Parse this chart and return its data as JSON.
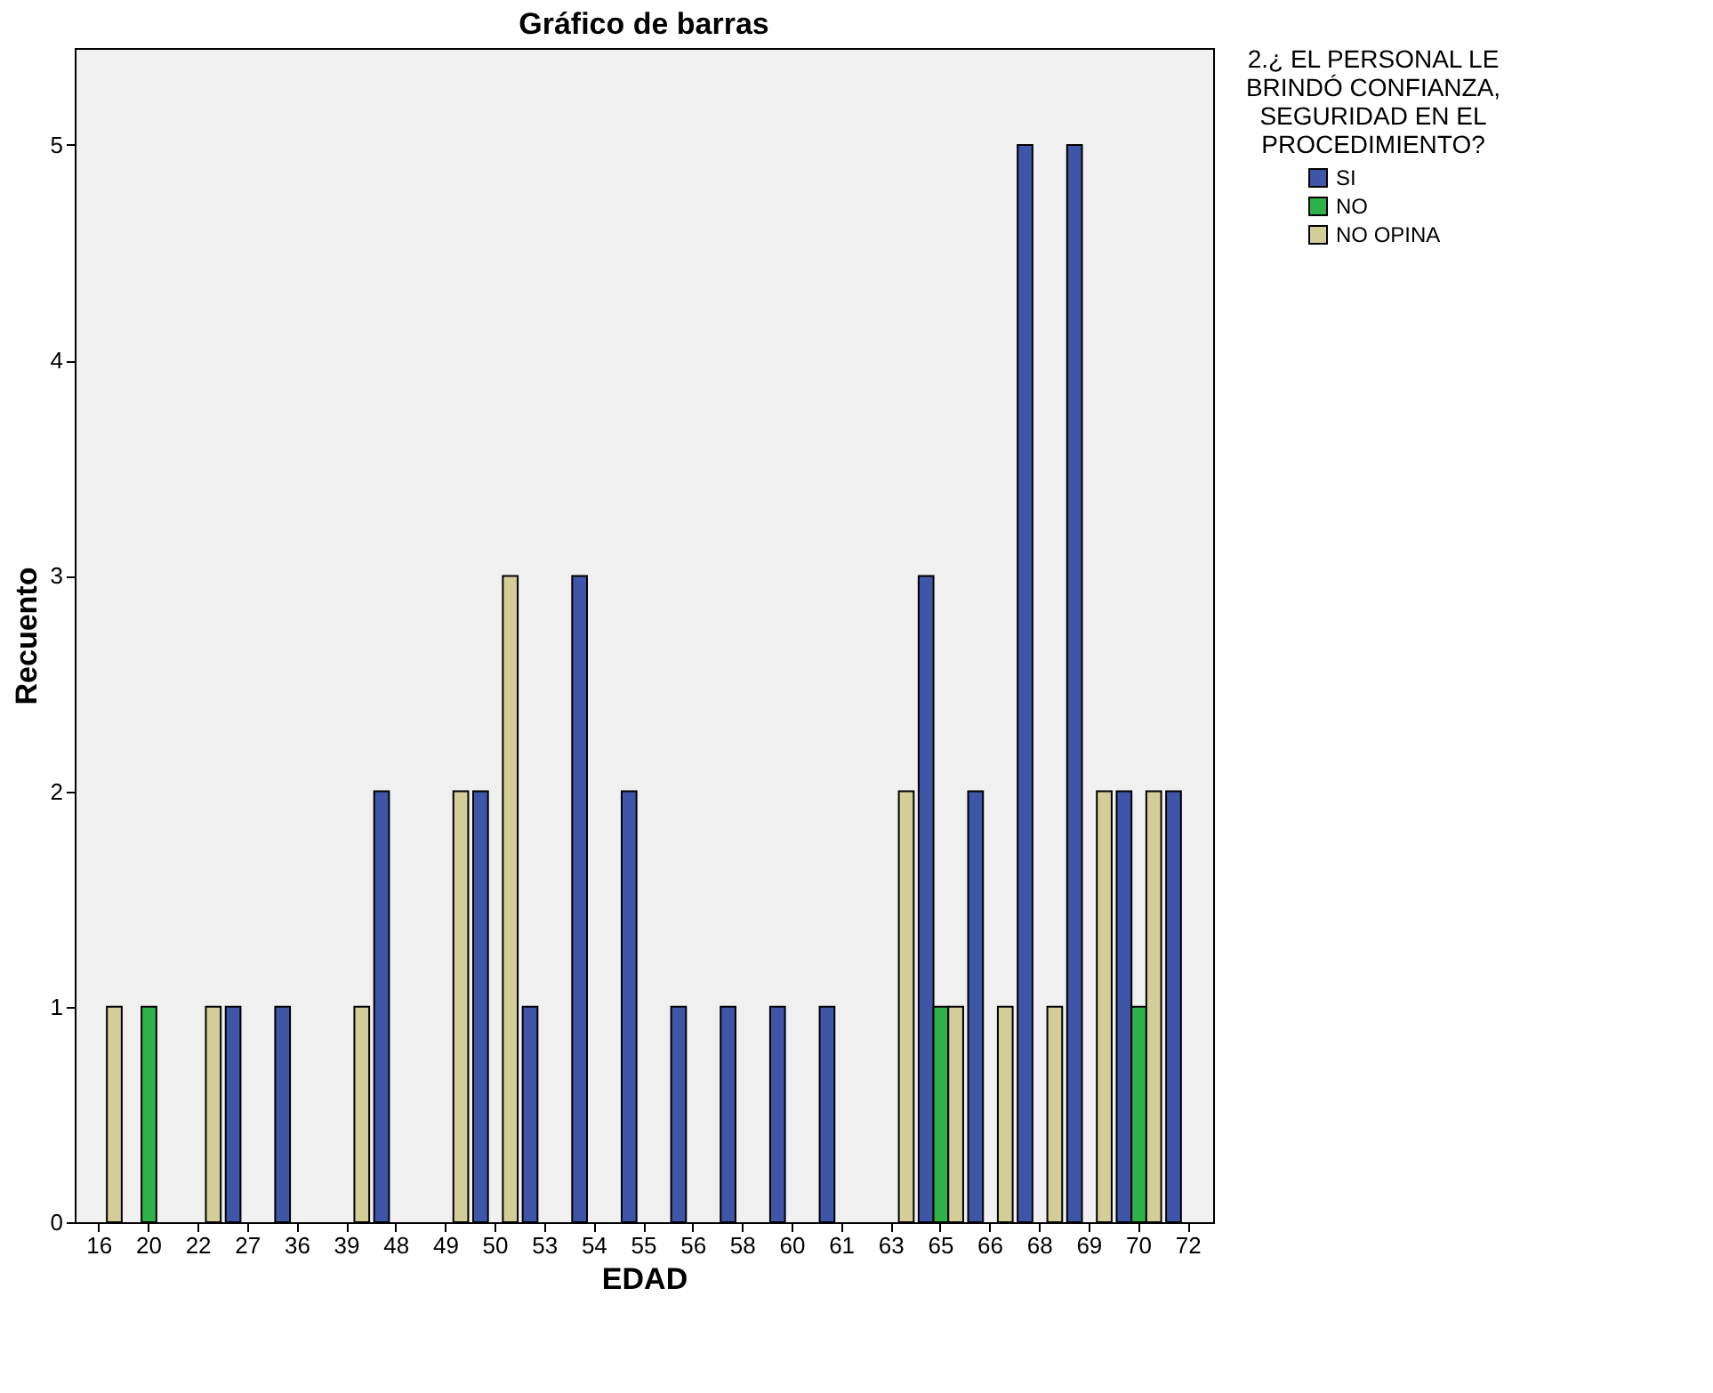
{
  "chart_data": {
    "type": "bar",
    "title": "Gráfico de barras",
    "xlabel": "EDAD",
    "ylabel": "Recuento",
    "legend_title": "2.¿ EL PERSONAL LE BRINDÓ CONFIANZA, SEGURIDAD EN EL PROCEDIMIENTO?",
    "categories": [
      "16",
      "20",
      "22",
      "27",
      "36",
      "39",
      "48",
      "49",
      "50",
      "53",
      "54",
      "55",
      "56",
      "58",
      "60",
      "61",
      "63",
      "65",
      "66",
      "68",
      "69",
      "70",
      "72"
    ],
    "series": [
      {
        "name": "SI",
        "color": "#3f55a8",
        "values": [
          null,
          null,
          null,
          1,
          1,
          null,
          2,
          null,
          2,
          1,
          3,
          2,
          1,
          1,
          1,
          1,
          null,
          3,
          2,
          5,
          5,
          2,
          2
        ]
      },
      {
        "name": "NO",
        "color": "#2db34a",
        "values": [
          null,
          1,
          null,
          null,
          null,
          null,
          null,
          null,
          null,
          null,
          null,
          null,
          null,
          null,
          null,
          null,
          null,
          1,
          null,
          null,
          null,
          1,
          null
        ]
      },
      {
        "name": "NO OPINA",
        "color": "#d3ce97",
        "values": [
          1,
          null,
          1,
          null,
          null,
          1,
          null,
          2,
          3,
          null,
          null,
          null,
          null,
          null,
          null,
          null,
          2,
          1,
          1,
          1,
          2,
          2,
          null
        ]
      }
    ],
    "ylim": [
      0,
      5.45
    ],
    "yticks": [
      0,
      1,
      2,
      3,
      4,
      5
    ],
    "grid": false,
    "legend": "top right"
  }
}
